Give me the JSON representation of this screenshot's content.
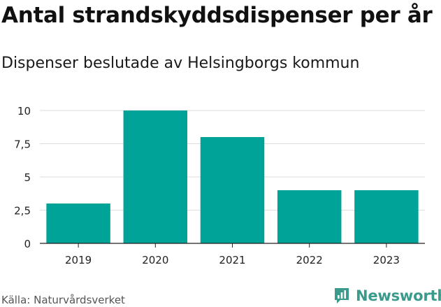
{
  "header": {
    "title": "Antal strandskyddsdispenser per år",
    "subtitle": "Dispenser beslutade av Helsingborgs kommun"
  },
  "footer": {
    "source": "Källa: Naturvårdsverket",
    "brand": "Newsworthy",
    "brand_icon": "newsworthy-logo-icon"
  },
  "colors": {
    "bar": "#00a398",
    "grid": "#dddddd",
    "brand": "#3a9a8c"
  },
  "chart_data": {
    "type": "bar",
    "title": "Antal strandskyddsdispenser per år",
    "subtitle": "Dispenser beslutade av Helsingborgs kommun",
    "categories": [
      "2019",
      "2020",
      "2021",
      "2022",
      "2023"
    ],
    "values": [
      3,
      10,
      8,
      4,
      4
    ],
    "xlabel": "",
    "ylabel": "",
    "ylim": [
      0,
      10
    ],
    "yticks": [
      0,
      2.5,
      5,
      7.5,
      10
    ],
    "ytick_labels": [
      "0",
      "2,5",
      "5",
      "7,5",
      "10"
    ],
    "grid": true
  }
}
